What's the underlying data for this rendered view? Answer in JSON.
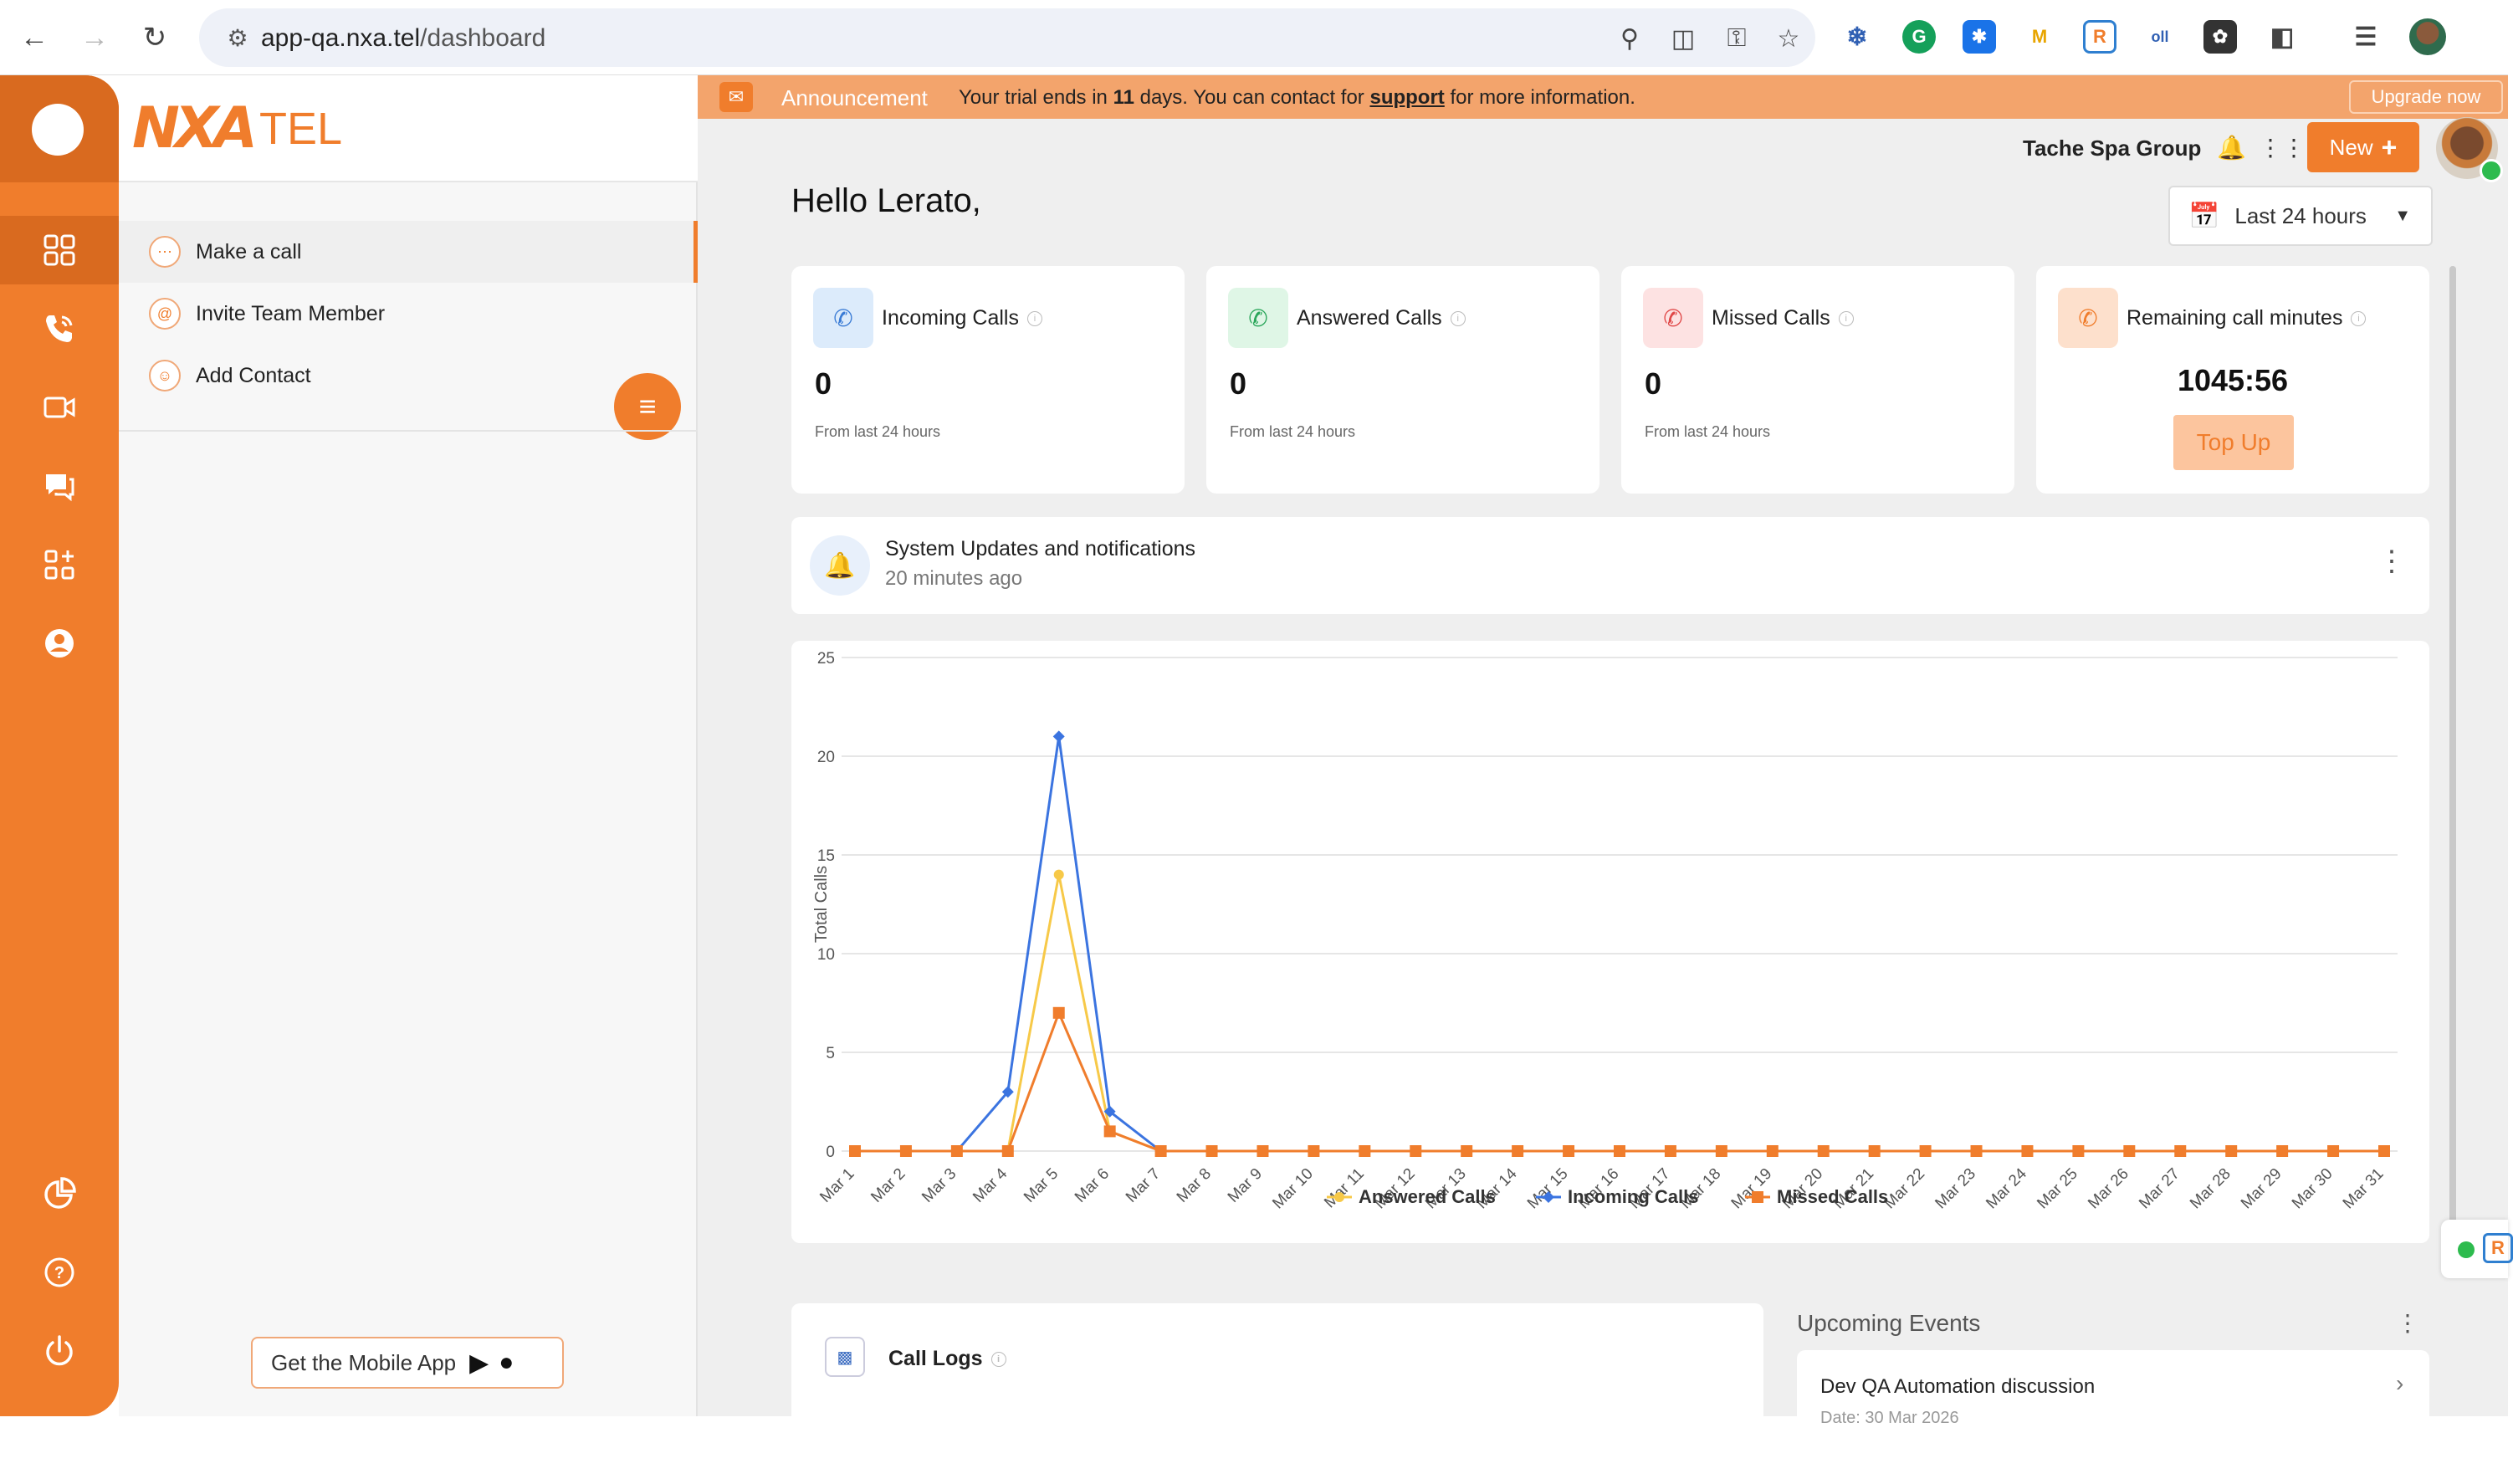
{
  "browser": {
    "url_host": "app-qa.nxa.tel",
    "url_path": "/dashboard"
  },
  "logo": {
    "mark": "NXA",
    "text": "TEL"
  },
  "sidebar": {
    "items": [
      {
        "label": "Make a call",
        "icon": "dialpad-icon"
      },
      {
        "label": "Invite Team Member",
        "icon": "at-icon"
      },
      {
        "label": "Add Contact",
        "icon": "person-icon"
      }
    ],
    "mobile_app_label": "Get the Mobile App"
  },
  "announcement": {
    "title": "Announcement",
    "msg_prefix": "Your trial ends in",
    "days": "11",
    "msg_middle": "days. You can contact for",
    "link": "support",
    "msg_suffix": "for more information.",
    "upgrade_label": "Upgrade now"
  },
  "header": {
    "org": "Tache Spa Group",
    "new_label": "New",
    "greeting": "Hello Lerato,",
    "range_label": "Last 24 hours"
  },
  "cards": [
    {
      "title": "Incoming Calls",
      "value": "0",
      "sub": "From last 24 hours",
      "color": "#dcebfb",
      "icon_color": "#3a7bd5"
    },
    {
      "title": "Answered Calls",
      "value": "0",
      "sub": "From last 24 hours",
      "color": "#dff6e6",
      "icon_color": "#2aa65a"
    },
    {
      "title": "Missed Calls",
      "value": "0",
      "sub": "From last 24 hours",
      "color": "#fde2e2",
      "icon_color": "#e04848"
    },
    {
      "title": "Remaining call minutes",
      "value": "1045:56",
      "action": "Top Up",
      "color": "#fde0cc",
      "icon_color": "#f07d2c"
    }
  ],
  "notification": {
    "title": "System Updates and notifications",
    "time": "20 minutes ago"
  },
  "chart_data": {
    "type": "line",
    "ylabel": "Total Calls",
    "ylim": [
      0,
      25
    ],
    "yticks": [
      0,
      5,
      10,
      15,
      20,
      25
    ],
    "categories": [
      "Mar 1",
      "Mar 2",
      "Mar 3",
      "Mar 4",
      "Mar 5",
      "Mar 6",
      "Mar 7",
      "Mar 8",
      "Mar 9",
      "Mar 10",
      "Mar 11",
      "Mar 12",
      "Mar 13",
      "Mar 14",
      "Mar 15",
      "Mar 16",
      "Mar 17",
      "Mar 18",
      "Mar 19",
      "Mar 20",
      "Mar 21",
      "Mar 22",
      "Mar 23",
      "Mar 24",
      "Mar 25",
      "Mar 26",
      "Mar 27",
      "Mar 28",
      "Mar 29",
      "Mar 30",
      "Mar 31"
    ],
    "series": [
      {
        "name": "Answered Calls",
        "color": "#f7c948",
        "marker": "circle",
        "values": [
          0,
          0,
          0,
          0,
          14,
          1,
          0,
          0,
          0,
          0,
          0,
          0,
          0,
          0,
          0,
          0,
          0,
          0,
          0,
          0,
          0,
          0,
          0,
          0,
          0,
          0,
          0,
          0,
          0,
          0,
          0
        ]
      },
      {
        "name": "Incoming Calls",
        "color": "#3b74e0",
        "marker": "diamond",
        "values": [
          0,
          0,
          0,
          3,
          21,
          2,
          0,
          0,
          0,
          0,
          0,
          0,
          0,
          0,
          0,
          0,
          0,
          0,
          0,
          0,
          0,
          0,
          0,
          0,
          0,
          0,
          0,
          0,
          0,
          0,
          0
        ]
      },
      {
        "name": "Missed Calls",
        "color": "#f07d2c",
        "marker": "square",
        "values": [
          0,
          0,
          0,
          0,
          7,
          1,
          0,
          0,
          0,
          0,
          0,
          0,
          0,
          0,
          0,
          0,
          0,
          0,
          0,
          0,
          0,
          0,
          0,
          0,
          0,
          0,
          0,
          0,
          0,
          0,
          0
        ]
      }
    ],
    "legend_position": "bottom"
  },
  "call_logs": {
    "title": "Call Logs"
  },
  "events": {
    "title": "Upcoming Events",
    "items": [
      {
        "name": "Dev QA Automation discussion",
        "date": "Date: 30 Mar 2026"
      }
    ]
  }
}
